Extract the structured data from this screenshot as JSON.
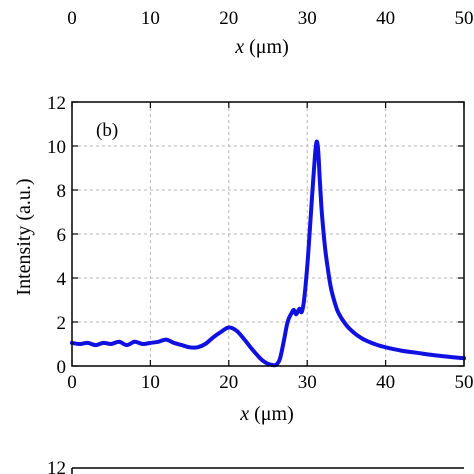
{
  "chart_data": [
    {
      "panel": "top",
      "type": "line",
      "xlabel_var": "x",
      "xlabel_unit": " (μm)",
      "xticks": [
        "0",
        "10",
        "20",
        "30",
        "40",
        "50"
      ],
      "xlim": [
        0,
        50
      ]
    },
    {
      "panel": "middle",
      "type": "line",
      "panel_label": "(b)",
      "xlabel_var": "x",
      "xlabel_unit": " (μm)",
      "ylabel": "Intensity  (a.u.)",
      "xlim": [
        0,
        50
      ],
      "ylim": [
        0,
        12
      ],
      "xticks": [
        "0",
        "10",
        "20",
        "30",
        "40",
        "50"
      ],
      "yticks": [
        "0",
        "2",
        "4",
        "6",
        "8",
        "10",
        "12"
      ],
      "grid": true,
      "series_color": "#1010e0",
      "x": [
        0,
        1,
        2,
        3,
        4,
        5,
        6,
        7,
        8,
        9,
        10,
        11,
        12,
        13,
        14,
        15,
        16,
        17,
        18,
        19,
        20,
        21,
        22,
        23,
        24,
        24.5,
        25,
        25.5,
        26,
        26.5,
        27,
        27.5,
        28,
        28.3,
        28.6,
        29,
        29.3,
        29.6,
        30,
        30.3,
        30.6,
        31,
        31.2,
        31.4,
        31.6,
        31.8,
        32,
        32.3,
        32.6,
        33,
        33.5,
        34,
        35,
        36,
        37,
        38,
        39,
        40,
        42,
        44,
        46,
        48,
        50
      ],
      "y": [
        1.05,
        1.0,
        1.05,
        0.95,
        1.05,
        1.0,
        1.1,
        0.95,
        1.1,
        1.0,
        1.05,
        1.1,
        1.2,
        1.05,
        0.95,
        0.85,
        0.85,
        1.0,
        1.3,
        1.55,
        1.75,
        1.6,
        1.2,
        0.75,
        0.35,
        0.2,
        0.1,
        0.05,
        0.05,
        0.3,
        1.1,
        2.0,
        2.4,
        2.55,
        2.35,
        2.6,
        2.45,
        3.0,
        4.5,
        6.0,
        7.6,
        9.6,
        10.2,
        9.8,
        8.5,
        7.3,
        6.4,
        5.3,
        4.5,
        3.6,
        2.9,
        2.4,
        1.85,
        1.5,
        1.25,
        1.08,
        0.95,
        0.85,
        0.7,
        0.6,
        0.5,
        0.42,
        0.35
      ]
    },
    {
      "panel": "bottom",
      "type": "line",
      "ytick_top": "12"
    }
  ]
}
